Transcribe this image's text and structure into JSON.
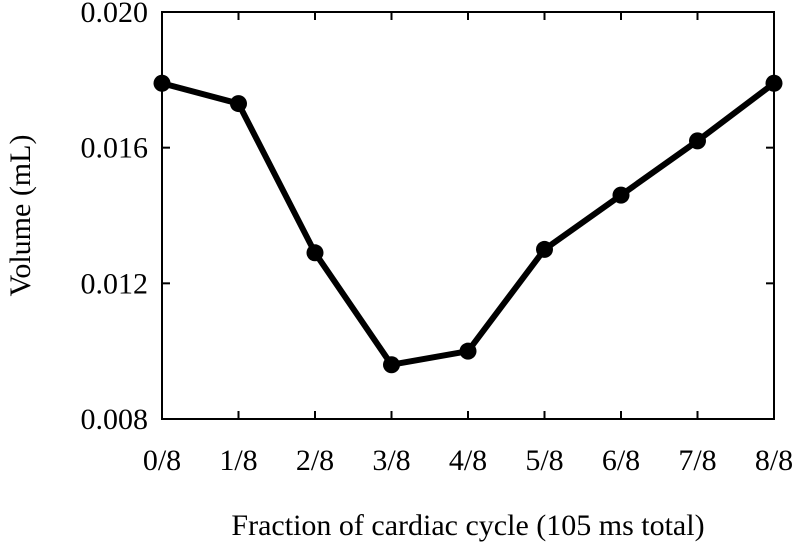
{
  "chart_data": {
    "type": "line",
    "title": "",
    "xlabel": "Fraction of cardiac cycle (105 ms total)",
    "ylabel": "Volume (mL)",
    "categories": [
      "0/8",
      "1/8",
      "2/8",
      "3/8",
      "4/8",
      "5/8",
      "6/8",
      "7/8",
      "8/8"
    ],
    "series": [
      {
        "values": [
          0.0179,
          0.0173,
          0.0129,
          0.0096,
          0.01,
          0.013,
          0.0146,
          0.0162,
          0.0179
        ]
      }
    ],
    "ylim": [
      0.008,
      0.02
    ],
    "yticks": [
      "0.008",
      "0.012",
      "0.016",
      "0.020"
    ],
    "grid": false,
    "line_color": "#000000",
    "marker": "circle"
  }
}
